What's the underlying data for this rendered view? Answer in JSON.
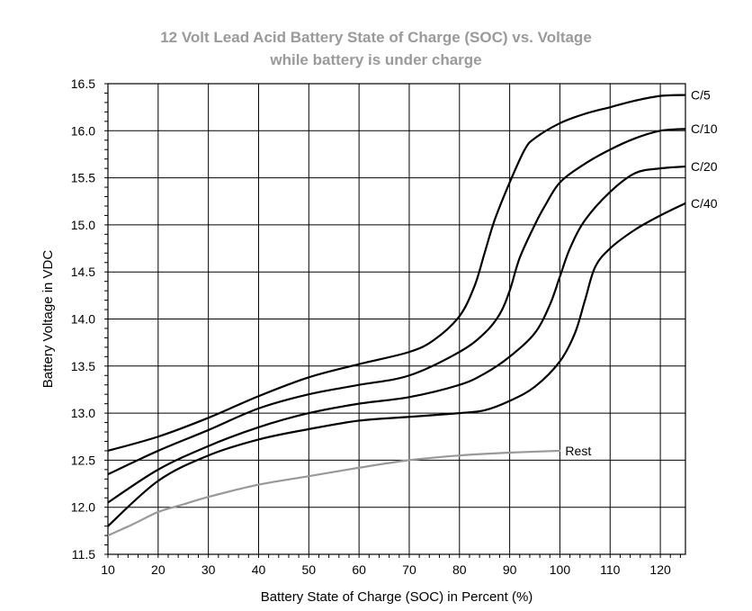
{
  "chart_data": {
    "type": "line",
    "title": "12 Volt Lead Acid Battery State of Charge (SOC) vs. Voltage",
    "subtitle": "while battery is under charge",
    "xlabel": "Battery State of Charge (SOC) in Percent (%)",
    "ylabel": "Battery Voltage in VDC",
    "xlim": [
      10,
      125
    ],
    "ylim": [
      11.5,
      16.5
    ],
    "xticks": [
      10,
      20,
      30,
      40,
      50,
      60,
      70,
      80,
      90,
      100,
      110,
      120
    ],
    "yticks": [
      "11.5",
      "12.0",
      "12.5",
      "13.0",
      "13.5",
      "14.0",
      "14.5",
      "15.0",
      "15.5",
      "16.0",
      "16.5"
    ],
    "grid": true,
    "series": [
      {
        "name": "C/5",
        "color": "#000000",
        "x": [
          10,
          20,
          30,
          40,
          50,
          60,
          70,
          75,
          80,
          83,
          85,
          87,
          90,
          93,
          95,
          100,
          105,
          110,
          115,
          120,
          125
        ],
        "y": [
          12.6,
          12.75,
          12.95,
          13.18,
          13.38,
          13.52,
          13.65,
          13.78,
          14.03,
          14.35,
          14.7,
          15.05,
          15.45,
          15.8,
          15.92,
          16.08,
          16.18,
          16.25,
          16.32,
          16.37,
          16.38
        ]
      },
      {
        "name": "C/10",
        "color": "#000000",
        "x": [
          10,
          20,
          30,
          40,
          50,
          60,
          70,
          80,
          85,
          88,
          90,
          92,
          95,
          97,
          100,
          105,
          110,
          115,
          120,
          125
        ],
        "y": [
          12.35,
          12.6,
          12.82,
          13.05,
          13.2,
          13.3,
          13.4,
          13.65,
          13.85,
          14.05,
          14.3,
          14.65,
          15.0,
          15.2,
          15.45,
          15.65,
          15.8,
          15.92,
          16.0,
          16.02
        ]
      },
      {
        "name": "C/20",
        "color": "#000000",
        "x": [
          10,
          20,
          30,
          40,
          50,
          60,
          70,
          80,
          85,
          90,
          95,
          98,
          100,
          102,
          105,
          110,
          115,
          120,
          125
        ],
        "y": [
          12.05,
          12.4,
          12.65,
          12.85,
          13.0,
          13.1,
          13.17,
          13.3,
          13.42,
          13.6,
          13.85,
          14.15,
          14.45,
          14.75,
          15.05,
          15.35,
          15.55,
          15.6,
          15.62
        ]
      },
      {
        "name": "C/40",
        "color": "#000000",
        "x": [
          10,
          20,
          30,
          40,
          50,
          60,
          70,
          80,
          85,
          90,
          95,
          100,
          103,
          105,
          107,
          110,
          115,
          120,
          125
        ],
        "y": [
          11.8,
          12.28,
          12.55,
          12.72,
          12.83,
          12.92,
          12.96,
          13.0,
          13.03,
          13.13,
          13.28,
          13.55,
          13.85,
          14.2,
          14.55,
          14.75,
          14.95,
          15.1,
          15.23
        ]
      },
      {
        "name": "Rest",
        "color": "#999999",
        "x": [
          10,
          15,
          20,
          25,
          30,
          40,
          50,
          60,
          70,
          80,
          90,
          100
        ],
        "y": [
          11.7,
          11.82,
          11.95,
          12.03,
          12.11,
          12.24,
          12.33,
          12.42,
          12.5,
          12.55,
          12.58,
          12.6
        ]
      }
    ]
  }
}
